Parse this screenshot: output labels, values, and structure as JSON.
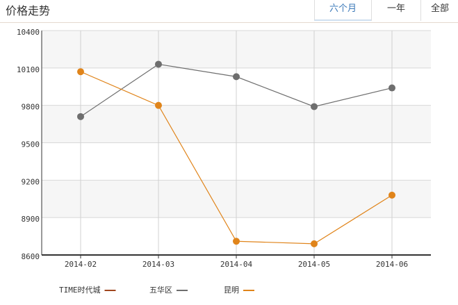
{
  "header": {
    "title": "价格走势"
  },
  "tabs": [
    "六个月",
    "一年",
    "全部"
  ],
  "chart_data": {
    "type": "line",
    "categories": [
      "2014-02",
      "2014-03",
      "2014-04",
      "2014-05",
      "2014-06"
    ],
    "series": [
      {
        "name": "TIME时代城",
        "color": "#a0461e",
        "values": [
          null,
          null,
          null,
          null,
          null
        ]
      },
      {
        "name": "五华区",
        "color": "#6e6e6e",
        "values": [
          9710,
          10130,
          10030,
          9790,
          9940
        ]
      },
      {
        "name": "昆明",
        "color": "#e0841a",
        "values": [
          10070,
          9800,
          8710,
          8690,
          9080
        ]
      }
    ],
    "ylim": [
      8600,
      10400
    ],
    "yticks": [
      8600,
      8900,
      9200,
      9500,
      9800,
      10100,
      10400
    ],
    "grid": true,
    "legend": "bottom"
  }
}
